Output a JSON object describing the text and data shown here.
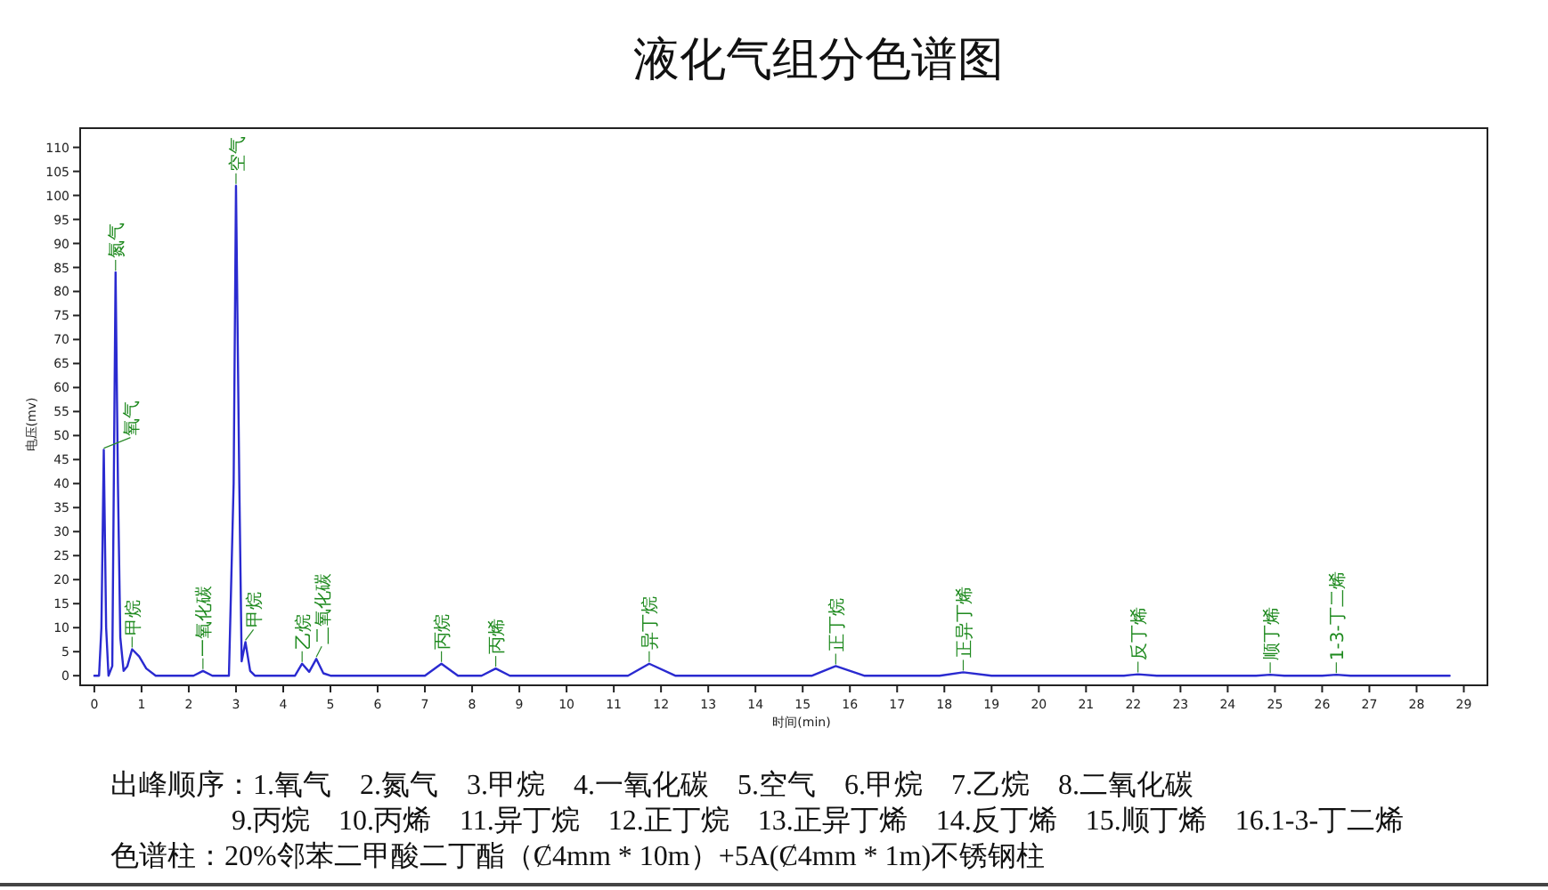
{
  "chart_data": {
    "type": "line",
    "title": "液化气组分色谱图",
    "xlabel": "时间(min)",
    "ylabel": "电压(mv)",
    "xlim": [
      -0.3,
      29.5
    ],
    "xticks": [
      0,
      1,
      2,
      3,
      4,
      5,
      6,
      7,
      8,
      9,
      10,
      11,
      12,
      13,
      14,
      15,
      16,
      17,
      18,
      19,
      20,
      21,
      22,
      23,
      24,
      25,
      26,
      27,
      28,
      29
    ],
    "ylim": [
      -2,
      114
    ],
    "yticks": [
      0,
      5,
      10,
      15,
      20,
      25,
      30,
      35,
      40,
      45,
      50,
      55,
      60,
      65,
      70,
      75,
      80,
      85,
      90,
      95,
      100,
      105,
      110
    ],
    "grid": false,
    "marker": "none",
    "line_style": "solid",
    "series": [
      {
        "color": "#2a2ad0",
        "x": [
          0,
          0.1,
          0.15,
          0.2,
          0.25,
          0.3,
          0.38,
          0.45,
          0.5,
          0.55,
          0.62,
          0.7,
          0.8,
          0.95,
          1.1,
          1.3,
          2.1,
          2.3,
          2.5,
          2.85,
          2.95,
          3.0,
          3.07,
          3.12,
          3.2,
          3.3,
          3.4,
          4.25,
          4.4,
          4.55,
          4.7,
          4.85,
          5.0,
          7.0,
          7.35,
          7.7,
          8.2,
          8.5,
          8.8,
          11.3,
          11.75,
          12.3,
          15.2,
          15.7,
          16.3,
          17.9,
          18.4,
          19.0,
          21.8,
          22.1,
          22.5,
          24.6,
          24.9,
          25.2,
          26.0,
          26.3,
          26.6,
          28.7
        ],
        "values": [
          0,
          0,
          10,
          47,
          10,
          0,
          2,
          84,
          40,
          8,
          1,
          2,
          5.5,
          4,
          1.5,
          0,
          0,
          1,
          0,
          0,
          40,
          102,
          40,
          3,
          7,
          1,
          0,
          0,
          2.5,
          0.8,
          3.5,
          0.5,
          0,
          0,
          2.5,
          0,
          0,
          1.5,
          0,
          0,
          2.5,
          0,
          0,
          2,
          0,
          0,
          0.7,
          0,
          0,
          0.3,
          0,
          0,
          0.2,
          0,
          0,
          0.2,
          0,
          0
        ]
      }
    ],
    "annotations": [
      {
        "text": "氧气",
        "x": 0.2,
        "y": 47
      },
      {
        "text": "氮气",
        "x": 0.45,
        "y": 84
      },
      {
        "text": "甲烷",
        "x": 0.8,
        "y": 5.5
      },
      {
        "text": "一氧化碳",
        "x": 2.3,
        "y": 1
      },
      {
        "text": "空气",
        "x": 3.0,
        "y": 102
      },
      {
        "text": "甲烷",
        "x": 3.2,
        "y": 7
      },
      {
        "text": "乙烷",
        "x": 4.4,
        "y": 2.5
      },
      {
        "text": "二氧化碳",
        "x": 4.7,
        "y": 3.5
      },
      {
        "text": "丙烷",
        "x": 7.35,
        "y": 2.5
      },
      {
        "text": "丙烯",
        "x": 8.5,
        "y": 1.5
      },
      {
        "text": "异丁烷",
        "x": 11.75,
        "y": 2.5
      },
      {
        "text": "正丁烷",
        "x": 15.7,
        "y": 2
      },
      {
        "text": "正异丁烯",
        "x": 18.4,
        "y": 0.7
      },
      {
        "text": "反丁烯",
        "x": 22.1,
        "y": 0.3
      },
      {
        "text": "顺丁烯",
        "x": 24.9,
        "y": 0.2
      },
      {
        "text": "1-3-丁二烯",
        "x": 26.3,
        "y": 0.2
      },
      "出峰顺序：1.氧气　2.氮气　3.甲烷　4.一氧化碳　5.空气　6.甲烷　7.乙烷　8.二氧化碳",
      "9.丙烷　10.丙烯　11.异丁烷　12.正丁烷　13.正异丁烯　14.反丁烯　15.顺丁烯　16.1-3-丁二烯",
      "色谱柱：20%邻苯二甲酸二丁酯（Ȼ4mm * 10m）+5A(Ȼ4mm * 1m)不锈钢柱"
    ]
  }
}
